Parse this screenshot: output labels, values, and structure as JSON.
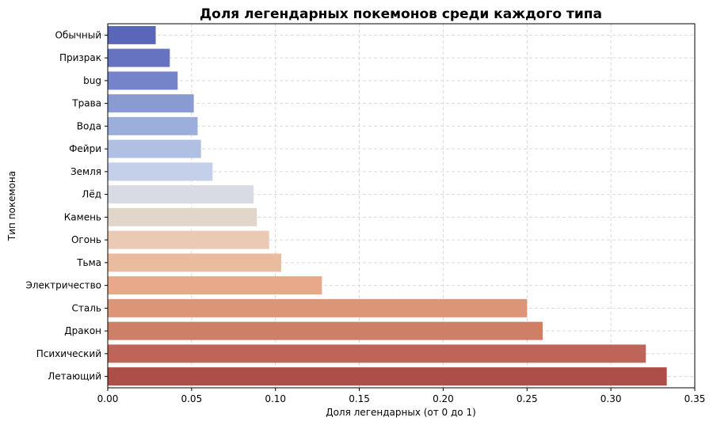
{
  "chart_data": {
    "type": "bar",
    "orientation": "horizontal",
    "title": "Доля легендарных покемонов среди каждого типа",
    "xlabel": "Доля легендарных (от 0 до 1)",
    "ylabel": "Тип покемона",
    "xlim": [
      0,
      0.35
    ],
    "xticks": [
      "0.00",
      "0.05",
      "0.10",
      "0.15",
      "0.20",
      "0.25",
      "0.30",
      "0.35"
    ],
    "grid": true,
    "categories": [
      "Обычный",
      "Призрак",
      "bug",
      "Трава",
      "Вода",
      "Фейри",
      "Земля",
      "Лёд",
      "Камень",
      "Огонь",
      "Тьма",
      "Электричество",
      "Сталь",
      "Дракон",
      "Психический",
      "Летающий"
    ],
    "values": [
      0.0286,
      0.037,
      0.0417,
      0.0513,
      0.0536,
      0.0556,
      0.0625,
      0.087,
      0.0889,
      0.0962,
      0.1034,
      0.1277,
      0.25,
      0.2593,
      0.3208,
      0.3333
    ],
    "colors": [
      "#5a67b8",
      "#6673bf",
      "#7584c8",
      "#8a9bd2",
      "#9caedb",
      "#afc0e3",
      "#c4d0ea",
      "#d8dbe2",
      "#e2d6cb",
      "#ebcab5",
      "#ebbb9f",
      "#e8a98a",
      "#dd9578",
      "#d07f67",
      "#bf6458",
      "#ad4e48"
    ]
  }
}
